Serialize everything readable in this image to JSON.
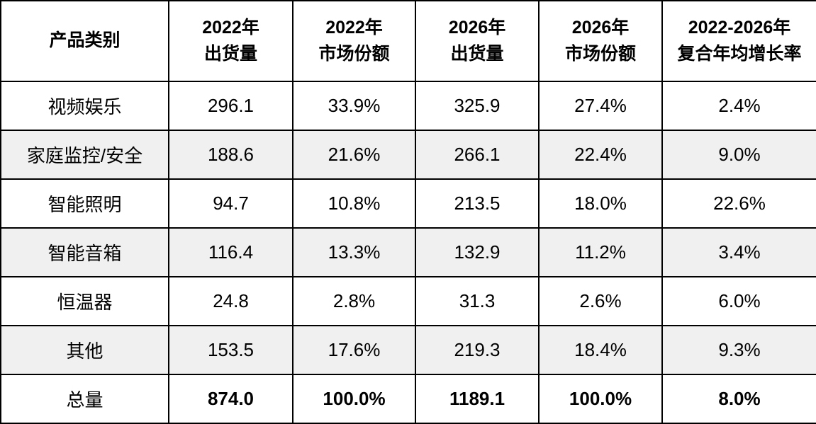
{
  "table": {
    "header": [
      {
        "line1": "产品类别",
        "line2": ""
      },
      {
        "line1": "2022年",
        "line2": "出货量"
      },
      {
        "line1": "2022年",
        "line2": "市场份额"
      },
      {
        "line1": "2026年",
        "line2": "出货量"
      },
      {
        "line1": "2026年",
        "line2": "市场份额"
      },
      {
        "line1": "2022-2026年",
        "line2": "复合年均增长率"
      }
    ],
    "rows": [
      {
        "category": "视频娱乐",
        "values": [
          "296.1",
          "33.9%",
          "325.9",
          "27.4%",
          "2.4%"
        ],
        "shaded": false,
        "total": false
      },
      {
        "category": "家庭监控/安全",
        "values": [
          "188.6",
          "21.6%",
          "266.1",
          "22.4%",
          "9.0%"
        ],
        "shaded": true,
        "total": false
      },
      {
        "category": "智能照明",
        "values": [
          "94.7",
          "10.8%",
          "213.5",
          "18.0%",
          "22.6%"
        ],
        "shaded": false,
        "total": false
      },
      {
        "category": "智能音箱",
        "values": [
          "116.4",
          "13.3%",
          "132.9",
          "11.2%",
          "3.4%"
        ],
        "shaded": true,
        "total": false
      },
      {
        "category": "恒温器",
        "values": [
          "24.8",
          "2.8%",
          "31.3",
          "2.6%",
          "6.0%"
        ],
        "shaded": false,
        "total": false
      },
      {
        "category": "其他",
        "values": [
          "153.5",
          "17.6%",
          "219.3",
          "18.4%",
          "9.3%"
        ],
        "shaded": true,
        "total": false
      },
      {
        "category": "总量",
        "values": [
          "874.0",
          "100.0%",
          "1189.1",
          "100.0%",
          "8.0%"
        ],
        "shaded": false,
        "total": true
      }
    ],
    "colors": {
      "shaded_row_background": "#f0f0f0",
      "border": "#000000",
      "background": "#ffffff",
      "text": "#000000"
    }
  },
  "chart_data": {
    "type": "table",
    "title": "",
    "columns": [
      "产品类别",
      "2022年出货量",
      "2022年市场份额",
      "2026年出货量",
      "2026年市场份额",
      "2022-2026年复合年均增长率"
    ],
    "categories": [
      "视频娱乐",
      "家庭监控/安全",
      "智能照明",
      "智能音箱",
      "恒温器",
      "其他",
      "总量"
    ],
    "series": [
      {
        "name": "2022年出货量",
        "values": [
          296.1,
          188.6,
          94.7,
          116.4,
          24.8,
          153.5,
          874.0
        ]
      },
      {
        "name": "2022年市场份额(%)",
        "values": [
          33.9,
          21.6,
          10.8,
          13.3,
          2.8,
          17.6,
          100.0
        ]
      },
      {
        "name": "2026年出货量",
        "values": [
          325.9,
          266.1,
          213.5,
          132.9,
          31.3,
          219.3,
          1189.1
        ]
      },
      {
        "name": "2026年市场份额(%)",
        "values": [
          27.4,
          22.4,
          18.0,
          11.2,
          2.6,
          18.4,
          100.0
        ]
      },
      {
        "name": "2022-2026年复合年均增长率(%)",
        "values": [
          2.4,
          9.0,
          22.6,
          3.4,
          6.0,
          9.3,
          8.0
        ]
      }
    ]
  }
}
